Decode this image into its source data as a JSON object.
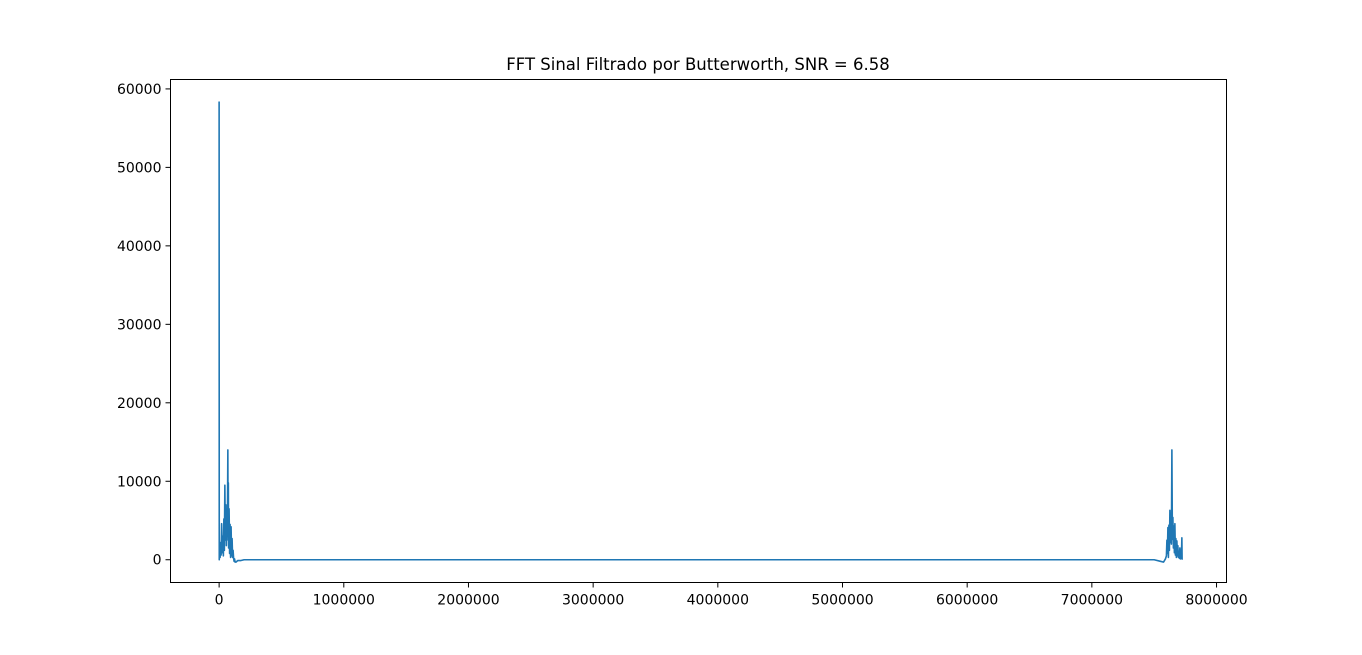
{
  "chart_data": {
    "type": "line",
    "title": "FFT Sinal Filtrado por Butterworth, SNR = 6.58",
    "xlabel": "",
    "ylabel": "",
    "xlim": [
      -390000,
      8080000
    ],
    "ylim": [
      -2900,
      61200
    ],
    "xticks": [
      0,
      1000000,
      2000000,
      3000000,
      4000000,
      5000000,
      6000000,
      7000000,
      8000000
    ],
    "xtick_labels": [
      "0",
      "1000000",
      "2000000",
      "3000000",
      "4000000",
      "5000000",
      "6000000",
      "7000000",
      "8000000"
    ],
    "yticks": [
      0,
      10000,
      20000,
      30000,
      40000,
      50000,
      60000
    ],
    "ytick_labels": [
      "0",
      "10000",
      "20000",
      "30000",
      "40000",
      "50000",
      "60000"
    ],
    "grid": false,
    "line_color": "#1f77b4",
    "series": [
      {
        "x": [
          0,
          1000,
          4000,
          8000,
          12000,
          16000,
          20000,
          25000,
          30000,
          34000,
          38000,
          42000,
          46000,
          50000,
          54000,
          58000,
          62000,
          66000,
          70000,
          72000,
          74000,
          76000,
          80000,
          84000,
          88000,
          92000,
          96000,
          100000,
          104000,
          108000,
          112000,
          116000,
          120000,
          124000,
          128000,
          135000,
          150000,
          175000,
          200000,
          250000,
          1000000,
          2000000,
          3000000,
          4000000,
          5000000,
          6000000,
          7000000,
          7500000,
          7550000,
          7575000,
          7590000,
          7598000,
          7602000,
          7606000,
          7610000,
          7614000,
          7618000,
          7622000,
          7626000,
          7630000,
          7634000,
          7638000,
          7642000,
          7646000,
          7650000,
          7654000,
          7658000,
          7662000,
          7666000,
          7670000,
          7674000,
          7678000,
          7682000,
          7686000,
          7690000,
          7694000,
          7698000,
          7702000,
          7706000,
          7710000,
          7714000,
          7718000,
          7722000,
          7724000
        ],
        "y": [
          58400,
          0,
          1800,
          300,
          2200,
          600,
          4600,
          900,
          3000,
          500,
          5200,
          1200,
          9500,
          2500,
          7000,
          1800,
          6400,
          3000,
          14000,
          2500,
          9800,
          1500,
          6500,
          800,
          4500,
          300,
          4200,
          500,
          2700,
          300,
          1200,
          200,
          -200,
          100,
          -300,
          -300,
          -100,
          -100,
          0,
          0,
          0,
          0,
          0,
          0,
          0,
          0,
          0,
          0,
          -200,
          -300,
          100,
          500,
          2500,
          800,
          4100,
          300,
          4400,
          1200,
          6300,
          2200,
          5800,
          2000,
          14000,
          2600,
          5400,
          1500,
          4300,
          900,
          4600,
          600,
          2700,
          300,
          2400,
          500,
          1800,
          300,
          900,
          200,
          1500,
          100,
          1200,
          200,
          2800,
          0
        ]
      }
    ]
  }
}
